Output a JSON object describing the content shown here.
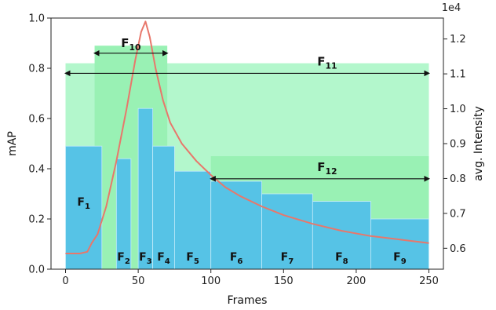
{
  "chart_data": {
    "type": "bar",
    "title": "",
    "xlabel": "Frames",
    "ylabel": "mAP",
    "y2label": "avg. Intensity",
    "y2_scale_label": "1e4",
    "xlim": [
      -10,
      260
    ],
    "ylim": [
      0,
      1.0
    ],
    "y2lim": [
      0.54,
      1.26
    ],
    "xticks": [
      0,
      50,
      100,
      150,
      200,
      250
    ],
    "yticks": [
      0.0,
      0.2,
      0.4,
      0.6,
      0.8,
      1.0
    ],
    "y2ticks": [
      0.6,
      0.7,
      0.8,
      0.9,
      1.0,
      1.1,
      1.2
    ],
    "grid": false,
    "colors": {
      "bar": "#56c3e6",
      "region_light": "#b3f7cc",
      "region_mid": "#99f1b4",
      "curve": "#e8776b",
      "axis": "#222222"
    },
    "bars": [
      {
        "label": "F1",
        "base": "F",
        "sub": "1",
        "x0": 0,
        "x1": 25,
        "value": 0.49
      },
      {
        "label": "F2",
        "base": "F",
        "sub": "2",
        "x0": 35,
        "x1": 45,
        "value": 0.44
      },
      {
        "label": "F3",
        "base": "F",
        "sub": "3",
        "x0": 50,
        "x1": 60,
        "value": 0.64
      },
      {
        "label": "F4",
        "base": "F",
        "sub": "4",
        "x0": 60,
        "x1": 75,
        "value": 0.49
      },
      {
        "label": "F5",
        "base": "F",
        "sub": "5",
        "x0": 75,
        "x1": 100,
        "value": 0.39
      },
      {
        "label": "F6",
        "base": "F",
        "sub": "6",
        "x0": 100,
        "x1": 135,
        "value": 0.35
      },
      {
        "label": "F7",
        "base": "F",
        "sub": "7",
        "x0": 135,
        "x1": 170,
        "value": 0.3
      },
      {
        "label": "F8",
        "base": "F",
        "sub": "8",
        "x0": 170,
        "x1": 210,
        "value": 0.27
      },
      {
        "label": "F9",
        "base": "F",
        "sub": "9",
        "x0": 210,
        "x1": 250,
        "value": 0.2
      }
    ],
    "regions": [
      {
        "label": "F11",
        "base": "F",
        "sub": "11",
        "x0": 0,
        "x1": 250,
        "top": 0.82
      },
      {
        "label": "F10",
        "base": "F",
        "sub": "10",
        "x0": 20,
        "x1": 70,
        "top": 0.89
      },
      {
        "label": "F12",
        "base": "F",
        "sub": "12",
        "x0": 100,
        "x1": 250,
        "top": 0.45
      }
    ],
    "intensity_curve": {
      "axis": "right",
      "x": [
        0,
        10,
        15,
        18,
        22,
        28,
        35,
        42,
        48,
        52,
        55,
        58,
        62,
        67,
        72,
        80,
        90,
        100,
        110,
        120,
        135,
        150,
        170,
        190,
        210,
        230,
        250
      ],
      "y": [
        0.585,
        0.585,
        0.59,
        0.615,
        0.64,
        0.72,
        0.85,
        1.0,
        1.14,
        1.22,
        1.25,
        1.205,
        1.115,
        1.025,
        0.96,
        0.9,
        0.85,
        0.81,
        0.775,
        0.75,
        0.72,
        0.695,
        0.67,
        0.65,
        0.635,
        0.625,
        0.615
      ]
    }
  }
}
